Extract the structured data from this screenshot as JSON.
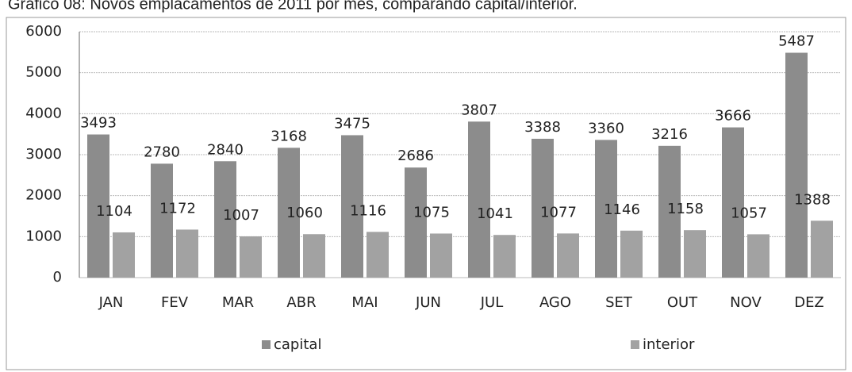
{
  "chart_data": {
    "type": "bar",
    "title": "Gráfico 08: Novos emplacamentos de 2011 por mês, comparando capital/interior.",
    "categories": [
      "JAN",
      "FEV",
      "MAR",
      "ABR",
      "MAI",
      "JUN",
      "JUL",
      "AGO",
      "SET",
      "OUT",
      "NOV",
      "DEZ"
    ],
    "series": [
      {
        "name": "capital",
        "color": "#8c8c8c",
        "values": [
          3493,
          2780,
          2840,
          3168,
          3475,
          2686,
          3807,
          3388,
          3360,
          3216,
          3666,
          5487
        ]
      },
      {
        "name": "interior",
        "color": "#a2a2a2",
        "values": [
          1104,
          1172,
          1007,
          1060,
          1116,
          1075,
          1041,
          1077,
          1146,
          1158,
          1057,
          1388
        ]
      }
    ],
    "ylim": [
      0,
      6000
    ],
    "yticks": [
      0,
      1000,
      2000,
      3000,
      4000,
      5000,
      6000
    ],
    "grid": true,
    "legend": "bottom"
  }
}
